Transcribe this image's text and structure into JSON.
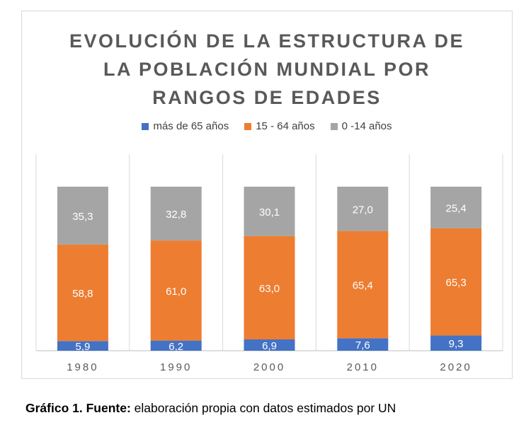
{
  "chart_data": {
    "type": "bar",
    "stacked": true,
    "title_lines": [
      "EVOLUCIÓN DE LA ESTRUCTURA DE",
      "LA POBLACIÓN MUNDIAL POR",
      "RANGOS DE EDADES"
    ],
    "categories": [
      "1980",
      "1990",
      "2000",
      "2010",
      "2020"
    ],
    "series": [
      {
        "name": "más de 65 años",
        "color": "#4472c4",
        "values": [
          5.9,
          6.2,
          6.9,
          7.6,
          9.3
        ],
        "labels": [
          "5,9",
          "6,2",
          "6,9",
          "7,6",
          "9,3"
        ]
      },
      {
        "name": "15 - 64 años",
        "color": "#ed7d31",
        "values": [
          58.8,
          61.0,
          63.0,
          65.4,
          65.3
        ],
        "labels": [
          "58,8",
          "61,0",
          "63,0",
          "65,4",
          "65,3"
        ]
      },
      {
        "name": "0 -14 años",
        "color": "#a5a5a5",
        "values": [
          35.3,
          32.8,
          30.1,
          27.0,
          25.4
        ],
        "labels": [
          "35,3",
          "32,8",
          "30,1",
          "27,0",
          "25,4"
        ]
      }
    ],
    "legend_position": "top",
    "grid": false
  },
  "caption": {
    "bold": "Gráfico 1. Fuente:",
    "text": " elaboración propia con datos estimados por UN"
  }
}
